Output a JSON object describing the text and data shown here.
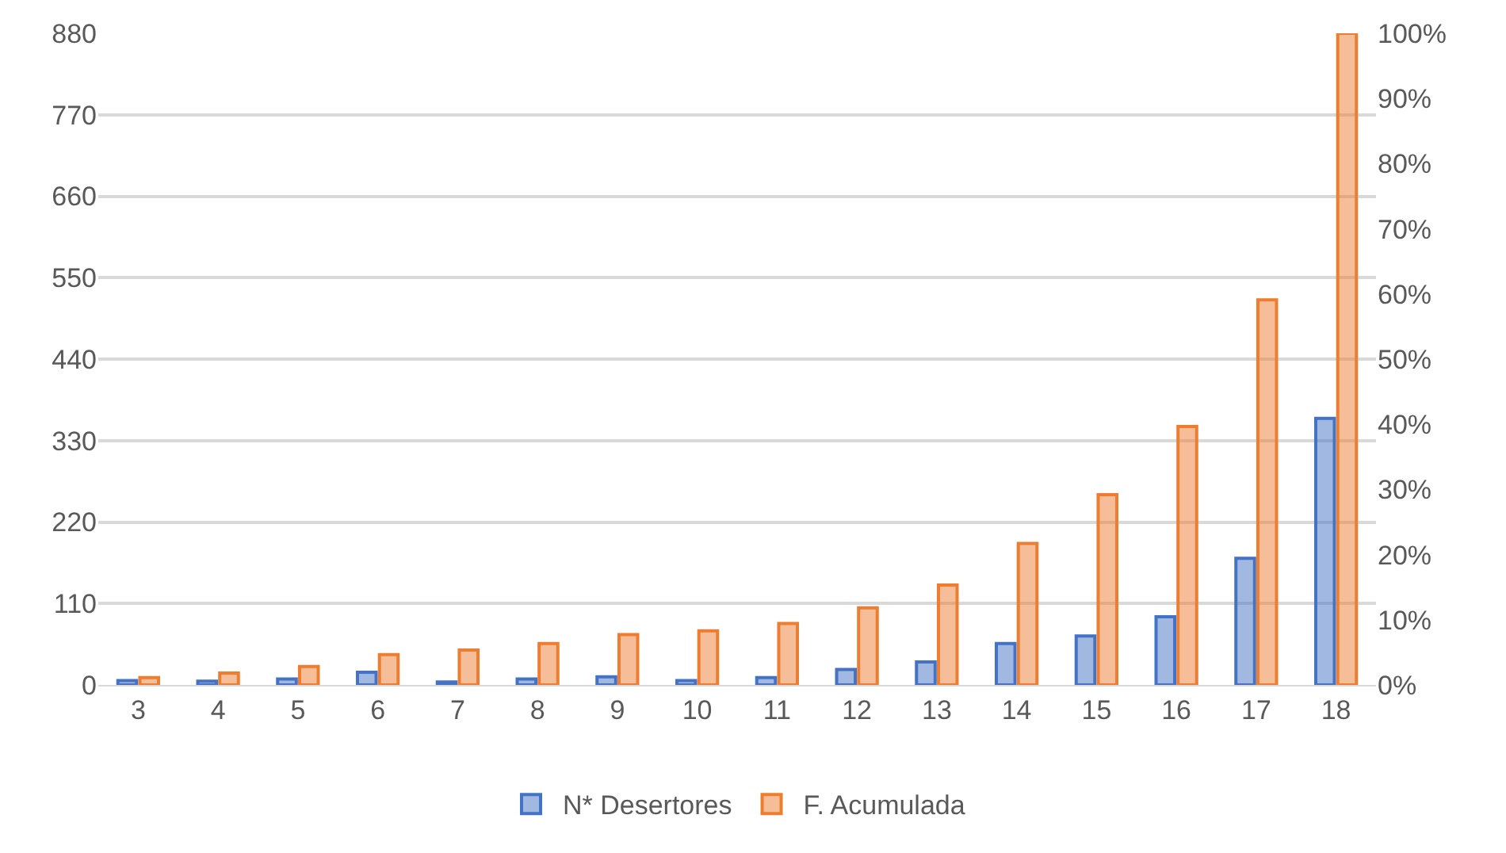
{
  "chart_data": {
    "type": "bar",
    "categories": [
      "3",
      "4",
      "5",
      "6",
      "7",
      "8",
      "9",
      "10",
      "11",
      "12",
      "13",
      "14",
      "15",
      "16",
      "17",
      "18"
    ],
    "series": [
      {
        "name": "N* Desertores",
        "color": "#4472c4",
        "values": [
          6,
          5,
          8,
          17,
          4,
          8,
          11,
          6,
          10,
          21,
          31,
          56,
          66,
          92,
          171,
          360
        ]
      },
      {
        "name": "F. Acumulada",
        "color": "#ed7d31",
        "values": [
          10,
          16,
          25,
          41,
          47,
          56,
          68,
          73,
          83,
          104,
          135,
          191,
          257,
          349,
          520,
          880
        ]
      }
    ],
    "ylim": [
      0,
      880
    ],
    "yticks": [
      0,
      110,
      220,
      330,
      440,
      550,
      660,
      770,
      880
    ],
    "y2lim": [
      0,
      100
    ],
    "y2ticks": [
      {
        "value": 0,
        "label": "0%"
      },
      {
        "value": 10,
        "label": "10%"
      },
      {
        "value": 20,
        "label": "20%"
      },
      {
        "value": 30,
        "label": "30%"
      },
      {
        "value": 40,
        "label": "40%"
      },
      {
        "value": 50,
        "label": "50%"
      },
      {
        "value": 60,
        "label": "60%"
      },
      {
        "value": 70,
        "label": "70%"
      },
      {
        "value": 80,
        "label": "80%"
      },
      {
        "value": 90,
        "label": "90%"
      },
      {
        "value": 100,
        "label": "100%"
      }
    ],
    "grid": "y",
    "legend": "bottom"
  }
}
